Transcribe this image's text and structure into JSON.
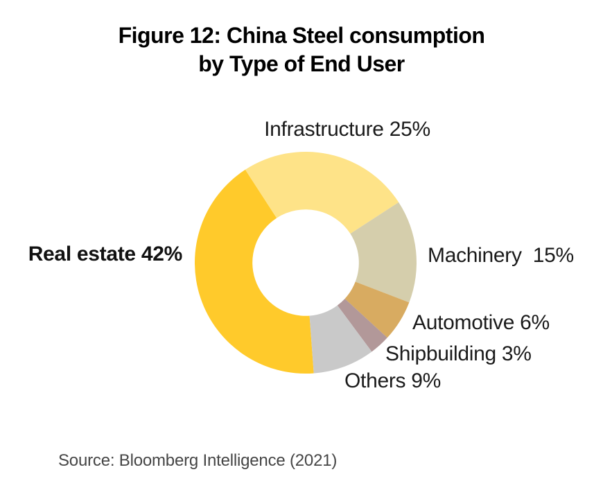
{
  "figure": {
    "title_line1": "Figure 12: China Steel consumption",
    "title_line2": "by Type of End User",
    "source": "Source: Bloomberg Intelligence (2021)"
  },
  "chart_data": {
    "type": "pie",
    "subtype": "donut",
    "title": "Figure 12: China Steel consumption by Type of End User",
    "unit": "%",
    "categories": [
      "Real estate",
      "Infrastructure",
      "Machinery",
      "Automotive",
      "Shipbuilding",
      "Others"
    ],
    "values": [
      42,
      25,
      15,
      6,
      3,
      9
    ],
    "slices": [
      {
        "label": "Real estate",
        "value": 42,
        "display": "Real estate 42%",
        "color": "#FFCA2B"
      },
      {
        "label": "Infrastructure",
        "value": 25,
        "display": "Infrastructure 25%",
        "color": "#FEE388"
      },
      {
        "label": "Machinery",
        "value": 15,
        "display": "Machinery  15%",
        "color": "#D5CEAC"
      },
      {
        "label": "Automotive",
        "value": 6,
        "display": "Automotive 6%",
        "color": "#D8AB61"
      },
      {
        "label": "Shipbuilding",
        "value": 3,
        "display": "Shipbuilding 3%",
        "color": "#B29899"
      },
      {
        "label": "Others",
        "value": 9,
        "display": "Others 9%",
        "color": "#C9C9C9"
      }
    ],
    "start_angle_deg": 175.8,
    "direction": "clockwise",
    "donut_hole_ratio": 0.48,
    "grid": false,
    "legend_position": "outside-labels"
  }
}
